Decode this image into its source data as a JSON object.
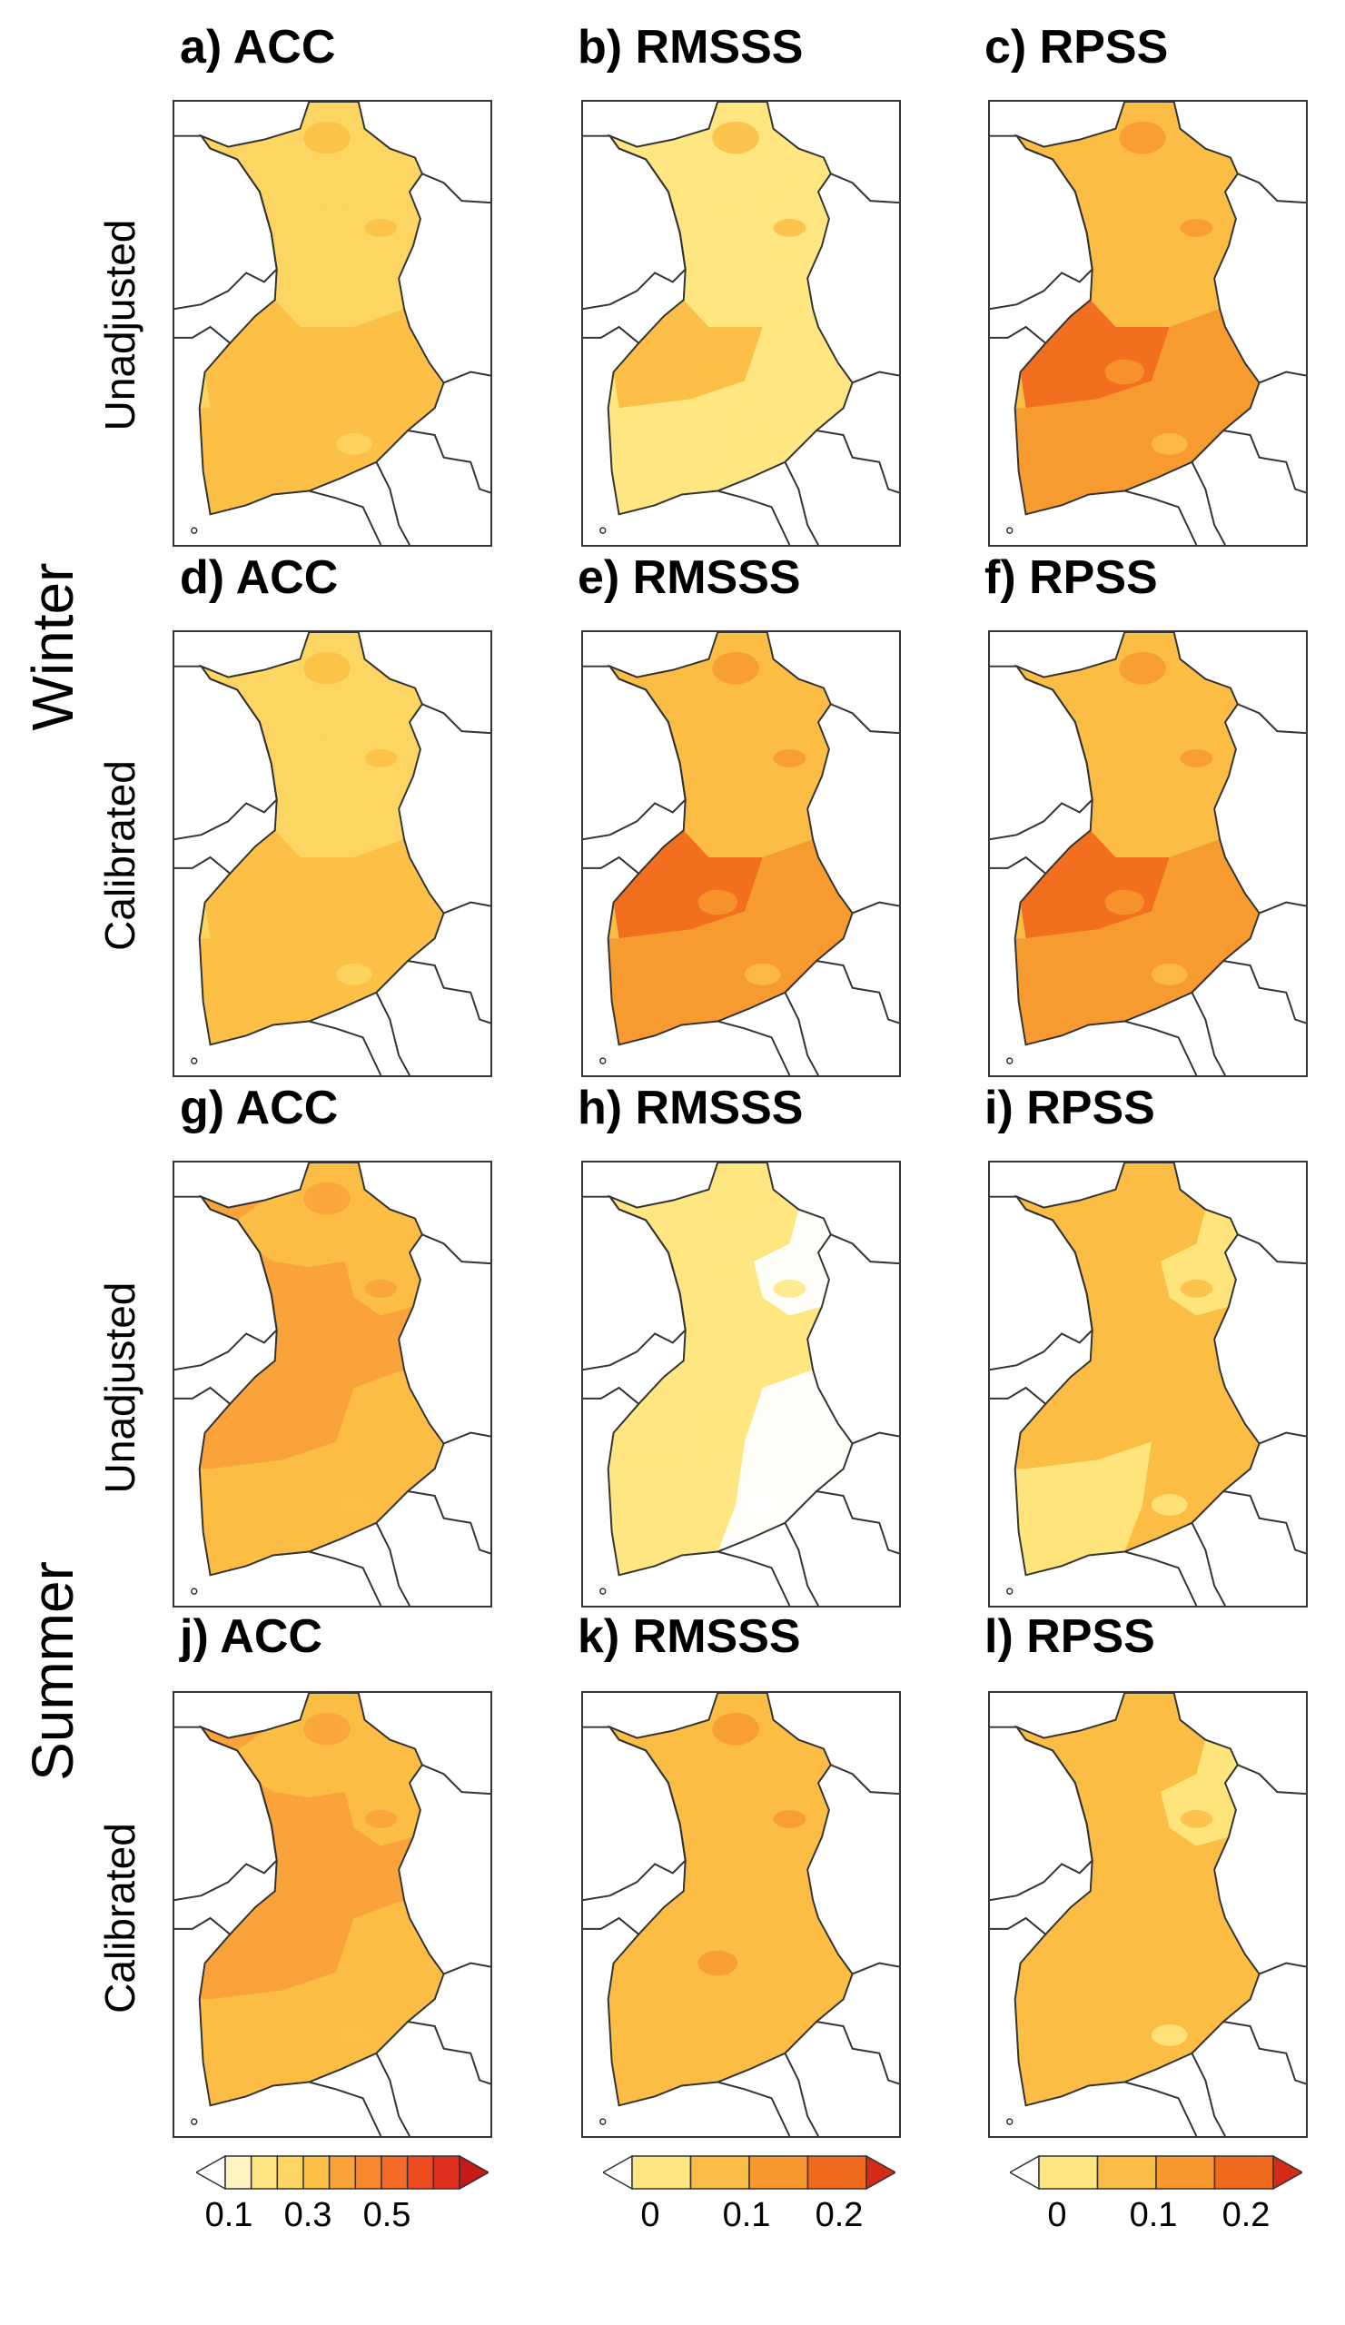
{
  "seasons": [
    {
      "label": "Winter"
    },
    {
      "label": "Summer"
    }
  ],
  "row_labels": [
    "Unadjusted",
    "Calibrated",
    "Unadjusted",
    "Calibrated"
  ],
  "panels": [
    {
      "title": "a) ACC",
      "pal": "acc",
      "lv": [
        3,
        3,
        3,
        4,
        4,
        4
      ]
    },
    {
      "title": "b) RMSSS",
      "pal": "skill",
      "lv": [
        1,
        1,
        1,
        2,
        1,
        1
      ]
    },
    {
      "title": "c) RPSS",
      "pal": "skill",
      "lv": [
        2,
        2,
        2,
        4,
        3,
        3
      ]
    },
    {
      "title": "d) ACC",
      "pal": "acc",
      "lv": [
        3,
        3,
        3,
        4,
        4,
        4
      ]
    },
    {
      "title": "e) RMSSS",
      "pal": "skill",
      "lv": [
        2,
        2,
        2,
        4,
        3,
        3
      ]
    },
    {
      "title": "f) RPSS",
      "pal": "skill",
      "lv": [
        2,
        2,
        2,
        4,
        3,
        3
      ]
    },
    {
      "title": "g) ACC",
      "pal": "acc",
      "lv": [
        4,
        4,
        5,
        5,
        4,
        4
      ]
    },
    {
      "title": "h) RMSSS",
      "pal": "skill",
      "lv": [
        1,
        0,
        1,
        1,
        1,
        0
      ]
    },
    {
      "title": "i) RPSS",
      "pal": "skill",
      "lv": [
        2,
        1,
        2,
        2,
        1,
        2
      ]
    },
    {
      "title": "j) ACC",
      "pal": "acc",
      "lv": [
        4,
        4,
        5,
        5,
        4,
        4
      ]
    },
    {
      "title": "k) RMSSS",
      "pal": "skill",
      "lv": [
        2,
        2,
        2,
        2,
        2,
        2
      ]
    },
    {
      "title": "l) RPSS",
      "pal": "skill",
      "lv": [
        2,
        1,
        2,
        2,
        2,
        2
      ]
    }
  ],
  "palettes": {
    "acc": [
      "#ffffff",
      "#fff3c4",
      "#ffe680",
      "#fdd562",
      "#fcbf45",
      "#f9a33a",
      "#f7882f",
      "#f46a26",
      "#ee4b20",
      "#e03020",
      "#c41a18"
    ],
    "skill": [
      "#ffffff",
      "#ffe680",
      "#fbbd45",
      "#f7992f",
      "#f06a1e",
      "#d42a1a"
    ]
  },
  "colorbars": [
    {
      "palette": "acc",
      "ticks": [
        "0.1",
        "0.3",
        "0.5"
      ]
    },
    {
      "palette": "skill",
      "ticks": [
        "0",
        "0.1",
        "0.2"
      ]
    },
    {
      "palette": "skill",
      "ticks": [
        "0",
        "0.1",
        "0.2"
      ]
    }
  ]
}
